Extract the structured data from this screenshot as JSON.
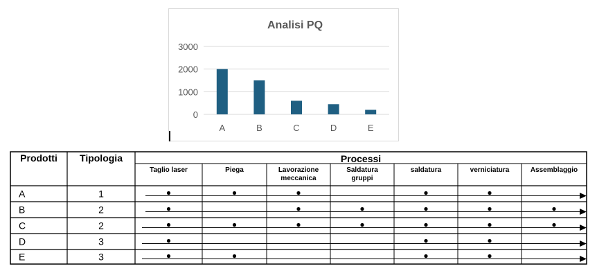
{
  "chart_data": {
    "type": "bar",
    "title": "Analisi PQ",
    "categories": [
      "A",
      "B",
      "C",
      "D",
      "E"
    ],
    "values": [
      2000,
      1500,
      600,
      450,
      200
    ],
    "ylim": [
      0,
      3000
    ],
    "yticks": [
      0,
      1000,
      2000,
      3000
    ],
    "ytick_labels": [
      "0",
      "1000",
      "2000",
      "3000"
    ],
    "xlabel": "",
    "ylabel": "",
    "grid": true,
    "colors": {
      "bar": "#1f5f82",
      "grid": "#d9d9d9",
      "title": "#595959",
      "tick": "#595959"
    }
  },
  "table": {
    "col_prodotti": "Prodotti",
    "col_tipologia": "Tipologia",
    "col_processi": "Processi",
    "processes": [
      [
        "Taglio laser"
      ],
      [
        "Piega"
      ],
      [
        "Lavorazione",
        "meccanica"
      ],
      [
        "Saldatura",
        "gruppi"
      ],
      [
        "saldatura"
      ],
      [
        "verniciatura"
      ],
      [
        "Assemblaggio"
      ]
    ],
    "rows": [
      {
        "product": "A",
        "type": "1",
        "steps": [
          true,
          true,
          true,
          false,
          true,
          true,
          false
        ]
      },
      {
        "product": "B",
        "type": "2",
        "steps": [
          true,
          false,
          true,
          true,
          true,
          true,
          true
        ]
      },
      {
        "product": "C",
        "type": "2",
        "steps": [
          true,
          true,
          true,
          true,
          true,
          true,
          true
        ]
      },
      {
        "product": "D",
        "type": "3",
        "steps": [
          true,
          false,
          false,
          false,
          true,
          true,
          false
        ]
      },
      {
        "product": "E",
        "type": "3",
        "steps": [
          true,
          true,
          false,
          false,
          true,
          true,
          false
        ]
      }
    ]
  }
}
